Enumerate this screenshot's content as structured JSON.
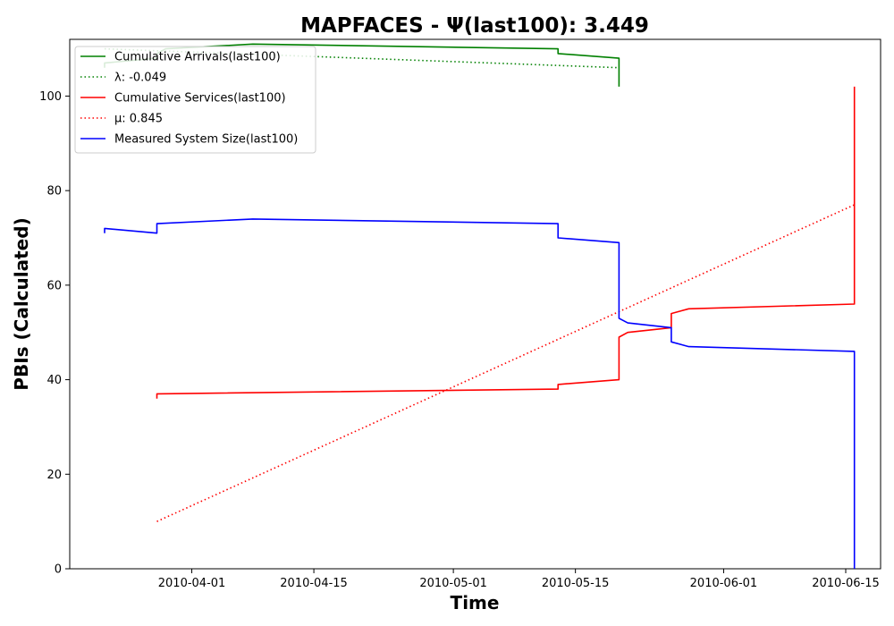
{
  "chart_data": {
    "type": "line",
    "title": "MAPFACES -  Ψ(last100): 3.449",
    "xlabel": "Time",
    "ylabel": "PBIs (Calculated)",
    "xlim": [
      "2010-03-18",
      "2010-06-19"
    ],
    "ylim": [
      0,
      112
    ],
    "x_ticks": [
      "2010-04-01",
      "2010-04-15",
      "2010-05-01",
      "2010-05-15",
      "2010-06-01",
      "2010-06-15"
    ],
    "y_ticks": [
      0,
      20,
      40,
      60,
      80,
      100
    ],
    "grid": false,
    "legend_position": "top-left",
    "series": [
      {
        "name": "Cumulative Arrivals(last100)",
        "color": "#008000",
        "style": "solid",
        "points": [
          [
            "2010-03-22",
            106
          ],
          [
            "2010-03-22",
            107
          ],
          [
            "2010-03-28",
            108
          ],
          [
            "2010-03-28",
            109
          ],
          [
            "2010-03-29",
            110
          ],
          [
            "2010-04-08",
            111
          ],
          [
            "2010-05-13",
            110
          ],
          [
            "2010-05-13",
            109
          ],
          [
            "2010-05-20",
            108
          ],
          [
            "2010-05-20",
            106
          ],
          [
            "2010-05-20",
            104
          ],
          [
            "2010-05-20",
            102
          ]
        ]
      },
      {
        "name": "λ: -0.049",
        "color": "#008000",
        "style": "dotted",
        "points": [
          [
            "2010-03-22",
            110
          ],
          [
            "2010-05-20",
            106
          ]
        ]
      },
      {
        "name": "Cumulative Services(last100)",
        "color": "#ff0000",
        "style": "solid",
        "points": [
          [
            "2010-03-28",
            36
          ],
          [
            "2010-03-28",
            37
          ],
          [
            "2010-05-13",
            38
          ],
          [
            "2010-05-13",
            39
          ],
          [
            "2010-05-20",
            40
          ],
          [
            "2010-05-20",
            49
          ],
          [
            "2010-05-21",
            50
          ],
          [
            "2010-05-26",
            51
          ],
          [
            "2010-05-26",
            54
          ],
          [
            "2010-05-28",
            55
          ],
          [
            "2010-06-16",
            56
          ],
          [
            "2010-06-16",
            80
          ],
          [
            "2010-06-16",
            93
          ],
          [
            "2010-06-16",
            94
          ],
          [
            "2010-06-16",
            102
          ]
        ]
      },
      {
        "name": "μ: 0.845",
        "color": "#ff0000",
        "style": "dotted",
        "points": [
          [
            "2010-03-28",
            10
          ],
          [
            "2010-06-16",
            77
          ]
        ]
      },
      {
        "name": "Measured System Size(last100)",
        "color": "#0000ff",
        "style": "solid",
        "points": [
          [
            "2010-03-22",
            71
          ],
          [
            "2010-03-22",
            72
          ],
          [
            "2010-03-28",
            71
          ],
          [
            "2010-03-28",
            73
          ],
          [
            "2010-04-08",
            74
          ],
          [
            "2010-05-13",
            73
          ],
          [
            "2010-05-13",
            70
          ],
          [
            "2010-05-20",
            69
          ],
          [
            "2010-05-20",
            53
          ],
          [
            "2010-05-21",
            52
          ],
          [
            "2010-05-26",
            51
          ],
          [
            "2010-05-26",
            48
          ],
          [
            "2010-05-28",
            47
          ],
          [
            "2010-06-16",
            46
          ],
          [
            "2010-06-16",
            20
          ],
          [
            "2010-06-16",
            9
          ],
          [
            "2010-06-16",
            8
          ],
          [
            "2010-06-16",
            0
          ]
        ]
      }
    ]
  }
}
